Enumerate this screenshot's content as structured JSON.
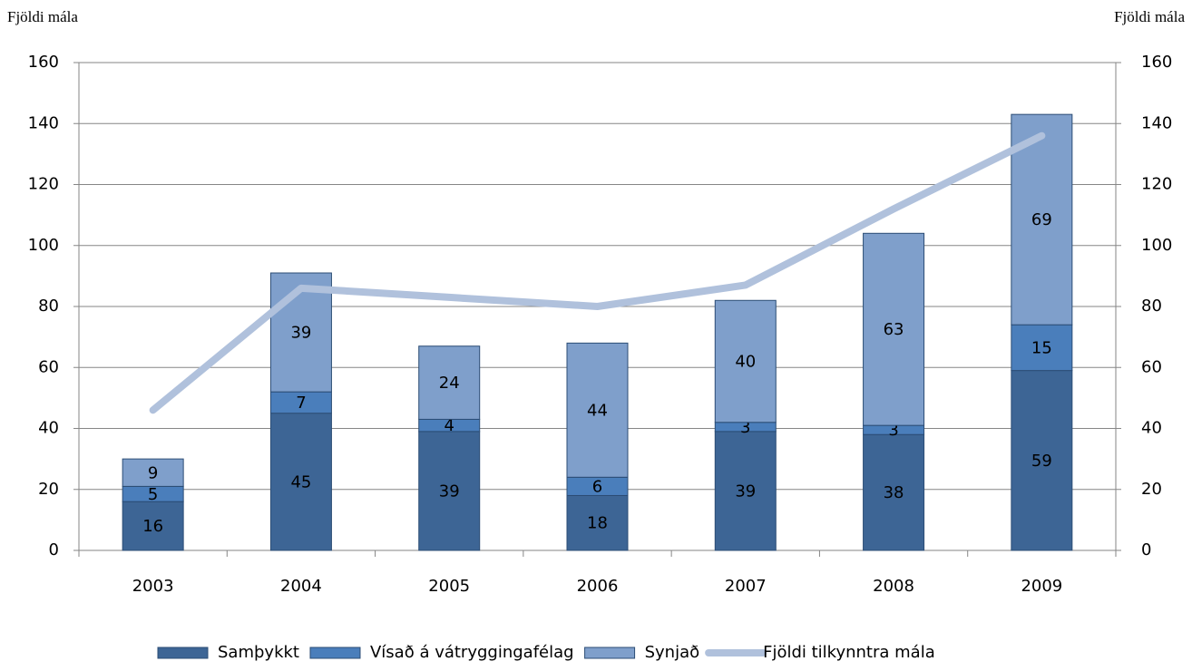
{
  "chart_data": {
    "type": "bar",
    "stacked": true,
    "y_label": "Fjöldi mála",
    "y2_label": "Fjöldi mála",
    "categories": [
      "2003",
      "2004",
      "2005",
      "2006",
      "2007",
      "2008",
      "2009"
    ],
    "series": [
      {
        "name": "Samþykkt",
        "color": "#3d6595",
        "values": [
          16,
          45,
          39,
          18,
          39,
          38,
          59
        ]
      },
      {
        "name": "Vísað á vátryggingafélag",
        "color": "#4a7ebb",
        "values": [
          5,
          7,
          4,
          6,
          3,
          3,
          15
        ]
      },
      {
        "name": "Synjað",
        "color": "#7f9fcb",
        "values": [
          9,
          39,
          24,
          44,
          40,
          63,
          69
        ]
      },
      {
        "name": "Fjöldi tilkynntra mála",
        "type": "line",
        "axis": "y2",
        "color": "#b0c1dc",
        "values": [
          46,
          86,
          83,
          80,
          87,
          112,
          136
        ]
      }
    ],
    "ylim": [
      0,
      160
    ],
    "yticks": [
      0,
      20,
      40,
      60,
      80,
      100,
      120,
      140,
      160
    ],
    "y2lim": [
      0,
      160
    ],
    "y2ticks": [
      0,
      20,
      40,
      60,
      80,
      100,
      120,
      140,
      160
    ],
    "grid": true,
    "legend": "bottom"
  }
}
